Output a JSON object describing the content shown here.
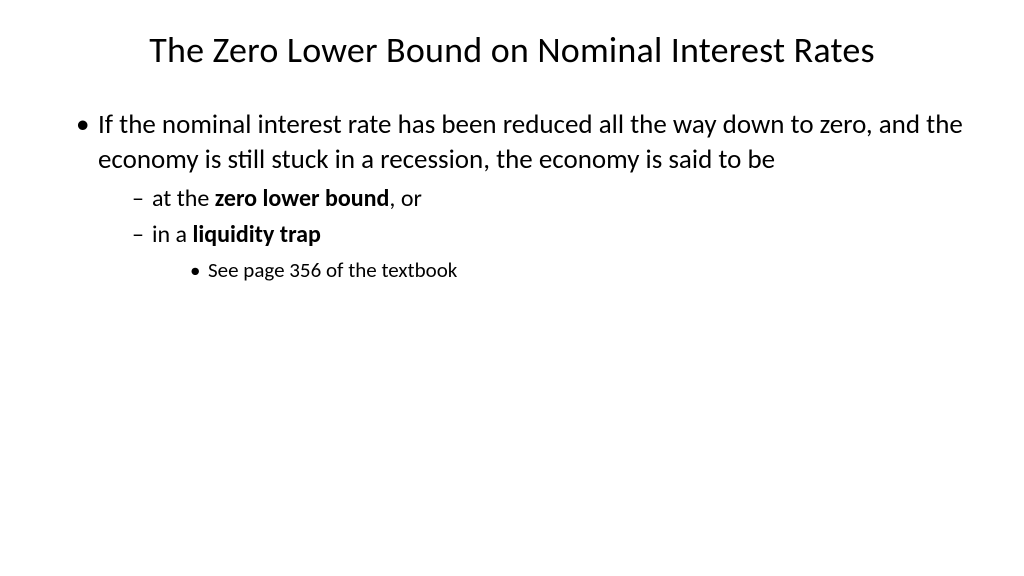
{
  "slide": {
    "title": "The Zero Lower Bound on Nominal Interest Rates",
    "bullet1": "If the nominal interest rate has been reduced all the way down to zero, and the economy is still stuck in a recession, the economy is said to be",
    "sub1_pre": "at the ",
    "sub1_bold": "zero lower bound",
    "sub1_post": ", or",
    "sub2_pre": "in a ",
    "sub2_bold": "liquidity trap",
    "subsub1": "See page 356 of the textbook"
  },
  "style": {
    "background_color": "#ffffff",
    "text_color": "#000000",
    "font_family": "Calibri",
    "title_fontsize": 36,
    "title_weight": 400,
    "lvl1_fontsize": 27,
    "lvl2_fontsize": 24,
    "lvl3_fontsize": 21,
    "bullet_lvl1": "•",
    "bullet_lvl2": "–",
    "bullet_lvl3": "•"
  }
}
